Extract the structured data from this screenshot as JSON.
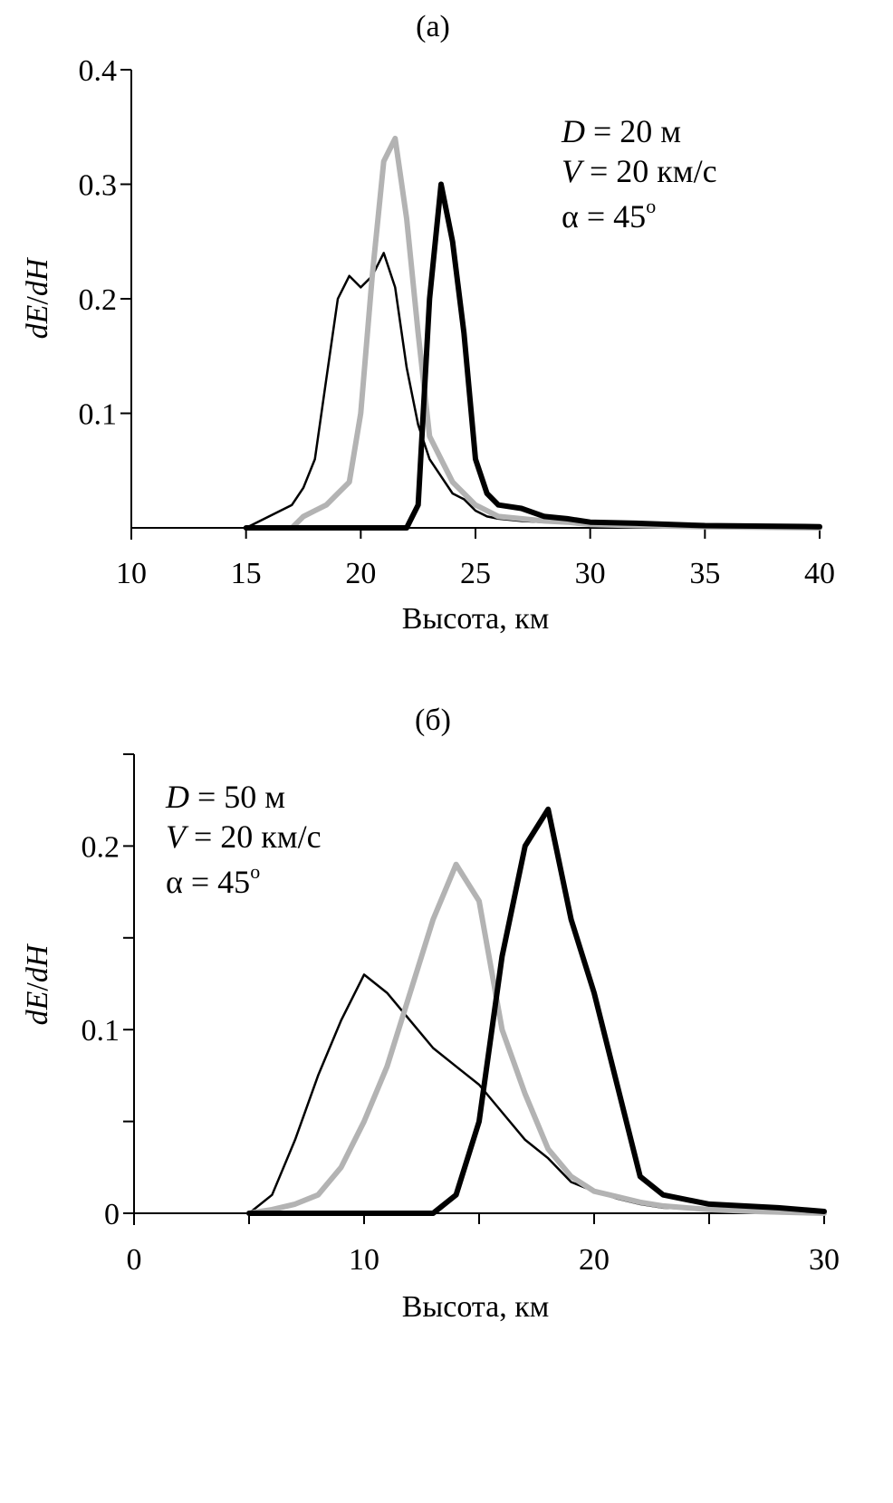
{
  "chart_data": [
    {
      "type": "line",
      "title": "(a)",
      "xlabel": "Высота, км",
      "ylabel": {
        "d1": "d",
        "v1": "E",
        "slash": "/",
        "d2": "d",
        "v2": "H"
      },
      "xlim": [
        10,
        40
      ],
      "ylim": [
        0,
        0.4
      ],
      "xticks": [
        "10",
        "15",
        "20",
        "25",
        "30",
        "35",
        "40"
      ],
      "yticks": [
        {
          "value": 0.1,
          "label": "0.1"
        },
        {
          "value": 0.2,
          "label": "0.2"
        },
        {
          "value": 0.3,
          "label": "0.3"
        },
        {
          "value": 0.4,
          "label": "0.4"
        }
      ],
      "yminor": [],
      "annotation": {
        "line1": {
          "var": "D",
          "rest": " = 20 м"
        },
        "line2": {
          "var": "V",
          "rest": " = 20 км/с"
        },
        "line3": {
          "var": "α",
          "rest": " = 45",
          "sup": "o"
        }
      },
      "series": [
        {
          "color": "#000000",
          "width": 2.5,
          "x": [
            15,
            16,
            17,
            17.5,
            18,
            18.5,
            19,
            19.5,
            20,
            20.5,
            21,
            21.5,
            22,
            22.5,
            23,
            23.5,
            24,
            24.5,
            25,
            25.5,
            26,
            27,
            28,
            29,
            30,
            32,
            35,
            40
          ],
          "y": [
            0,
            0.01,
            0.02,
            0.035,
            0.06,
            0.13,
            0.2,
            0.22,
            0.21,
            0.22,
            0.24,
            0.21,
            0.14,
            0.09,
            0.06,
            0.045,
            0.03,
            0.025,
            0.015,
            0.01,
            0.008,
            0.006,
            0.005,
            0.004,
            0.003,
            0.002,
            0.001,
            0
          ]
        },
        {
          "color": "#b3b3b3",
          "width": 6,
          "x": [
            17,
            17.5,
            18,
            18.5,
            19,
            19.5,
            20,
            20.5,
            21,
            21.5,
            22,
            22.5,
            23,
            23.5,
            24,
            24.5,
            25,
            25.5,
            26,
            27,
            28,
            29,
            30,
            32,
            35,
            40
          ],
          "y": [
            0,
            0.01,
            0.015,
            0.02,
            0.03,
            0.04,
            0.1,
            0.22,
            0.32,
            0.34,
            0.27,
            0.17,
            0.08,
            0.06,
            0.04,
            0.03,
            0.02,
            0.015,
            0.01,
            0.008,
            0.006,
            0.005,
            0.003,
            0.002,
            0.001,
            0
          ]
        },
        {
          "color": "#000000",
          "width": 6,
          "x": [
            15,
            22,
            22.5,
            23,
            23.5,
            24,
            24.5,
            25,
            25.5,
            26,
            27,
            28,
            29,
            30,
            32,
            35,
            40
          ],
          "y": [
            0,
            0,
            0.02,
            0.2,
            0.3,
            0.25,
            0.17,
            0.06,
            0.03,
            0.02,
            0.017,
            0.01,
            0.008,
            0.005,
            0.004,
            0.002,
            0.001
          ]
        }
      ]
    },
    {
      "type": "line",
      "title": "(б)",
      "xlabel": "Высота, км",
      "ylabel": {
        "d1": "d",
        "v1": "E",
        "slash": "/",
        "d2": "d",
        "v2": "H"
      },
      "xlim": [
        0,
        30
      ],
      "ylim": [
        0,
        0.25
      ],
      "xticks": [
        "0",
        "10",
        "20",
        "30"
      ],
      "yticks": [
        {
          "value": 0,
          "label": "0"
        },
        {
          "value": 0.1,
          "label": "0.1"
        },
        {
          "value": 0.2,
          "label": "0.2"
        }
      ],
      "yminor": [
        0.05,
        0.15,
        0.25
      ],
      "xminor": [
        5,
        15,
        25
      ],
      "annotation": {
        "line1": {
          "var": "D",
          "rest": " = 50 м"
        },
        "line2": {
          "var": "V",
          "rest": " = 20 км/с"
        },
        "line3": {
          "var": "α",
          "rest": " = 45",
          "sup": "o"
        }
      },
      "series": [
        {
          "color": "#000000",
          "width": 2.5,
          "x": [
            5,
            6,
            7,
            8,
            9,
            10,
            11,
            12,
            13,
            14,
            15,
            16,
            17,
            18,
            19,
            20,
            21,
            22,
            23,
            25,
            27,
            30
          ],
          "y": [
            0,
            0.01,
            0.04,
            0.075,
            0.105,
            0.13,
            0.12,
            0.105,
            0.09,
            0.08,
            0.07,
            0.055,
            0.04,
            0.03,
            0.017,
            0.012,
            0.008,
            0.005,
            0.003,
            0.002,
            0.001,
            0
          ]
        },
        {
          "color": "#b3b3b3",
          "width": 6,
          "x": [
            5,
            6,
            7,
            8,
            9,
            10,
            11,
            12,
            13,
            14,
            15,
            16,
            17,
            18,
            19,
            20,
            21,
            22,
            23,
            25,
            27,
            30
          ],
          "y": [
            0,
            0.002,
            0.005,
            0.01,
            0.025,
            0.05,
            0.08,
            0.12,
            0.16,
            0.19,
            0.17,
            0.1,
            0.065,
            0.035,
            0.02,
            0.012,
            0.009,
            0.006,
            0.004,
            0.002,
            0.001,
            0
          ]
        },
        {
          "color": "#000000",
          "width": 6,
          "x": [
            5,
            13,
            14,
            15,
            16,
            17,
            18,
            19,
            20,
            21,
            22,
            23,
            25,
            28,
            30
          ],
          "y": [
            0,
            0,
            0.01,
            0.05,
            0.14,
            0.2,
            0.22,
            0.16,
            0.12,
            0.07,
            0.02,
            0.01,
            0.005,
            0.003,
            0.001
          ]
        }
      ]
    }
  ]
}
